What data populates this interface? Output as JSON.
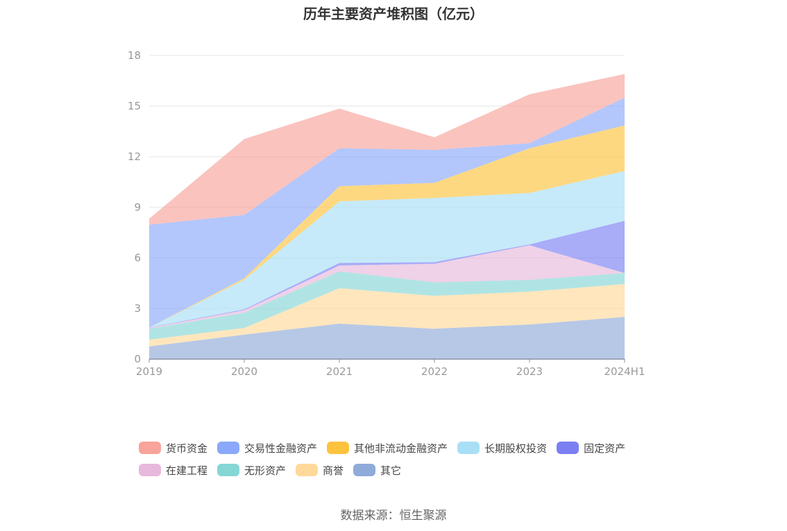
{
  "title": "历年主要资产堆积图（亿元）",
  "source": "数据来源：恒生聚源",
  "chart_data": {
    "type": "area",
    "stacked": true,
    "x": [
      "2019",
      "2020",
      "2021",
      "2022",
      "2023",
      "2024H1"
    ],
    "ylim": [
      0,
      18
    ],
    "yticks": [
      0,
      3,
      6,
      9,
      12,
      15,
      18
    ],
    "grid": true,
    "legend_position": "bottom",
    "series": [
      {
        "name": "其它",
        "color": "#8fabd9",
        "values": [
          0.75,
          1.45,
          2.1,
          1.8,
          2.05,
          2.5
        ]
      },
      {
        "name": "商誉",
        "color": "#ffd99a",
        "values": [
          0.4,
          0.4,
          2.1,
          1.95,
          1.95,
          1.95
        ]
      },
      {
        "name": "无形资产",
        "color": "#86d6d6",
        "values": [
          0.65,
          0.9,
          1.0,
          0.8,
          0.7,
          0.65
        ]
      },
      {
        "name": "在建工程",
        "color": "#e7b8dc",
        "values": [
          0.05,
          0.15,
          0.35,
          1.1,
          2.05,
          0
        ]
      },
      {
        "name": "固定资产",
        "color": "#7b7ff2",
        "values": [
          0.02,
          0.05,
          0.15,
          0.1,
          0.05,
          3.1
        ]
      },
      {
        "name": "长期股权投资",
        "color": "#a8dff6",
        "values": [
          0,
          1.75,
          3.65,
          3.8,
          3.05,
          2.95
        ]
      },
      {
        "name": "其他非流动金融资产",
        "color": "#fec33e",
        "values": [
          0,
          0.1,
          0.9,
          0.9,
          2.65,
          2.7
        ]
      },
      {
        "name": "交易性金融资产",
        "color": "#8aa9fa",
        "values": [
          6.1,
          3.75,
          2.25,
          1.95,
          0.3,
          1.65
        ]
      },
      {
        "name": "货币资金",
        "color": "#f8a39b",
        "values": [
          0.35,
          4.5,
          2.35,
          0.75,
          2.9,
          1.4
        ]
      }
    ],
    "legend_order": [
      "货币资金",
      "交易性金融资产",
      "其他非流动金融资产",
      "长期股权投资",
      "固定资产",
      "在建工程",
      "无形资产",
      "商誉",
      "其它"
    ]
  }
}
